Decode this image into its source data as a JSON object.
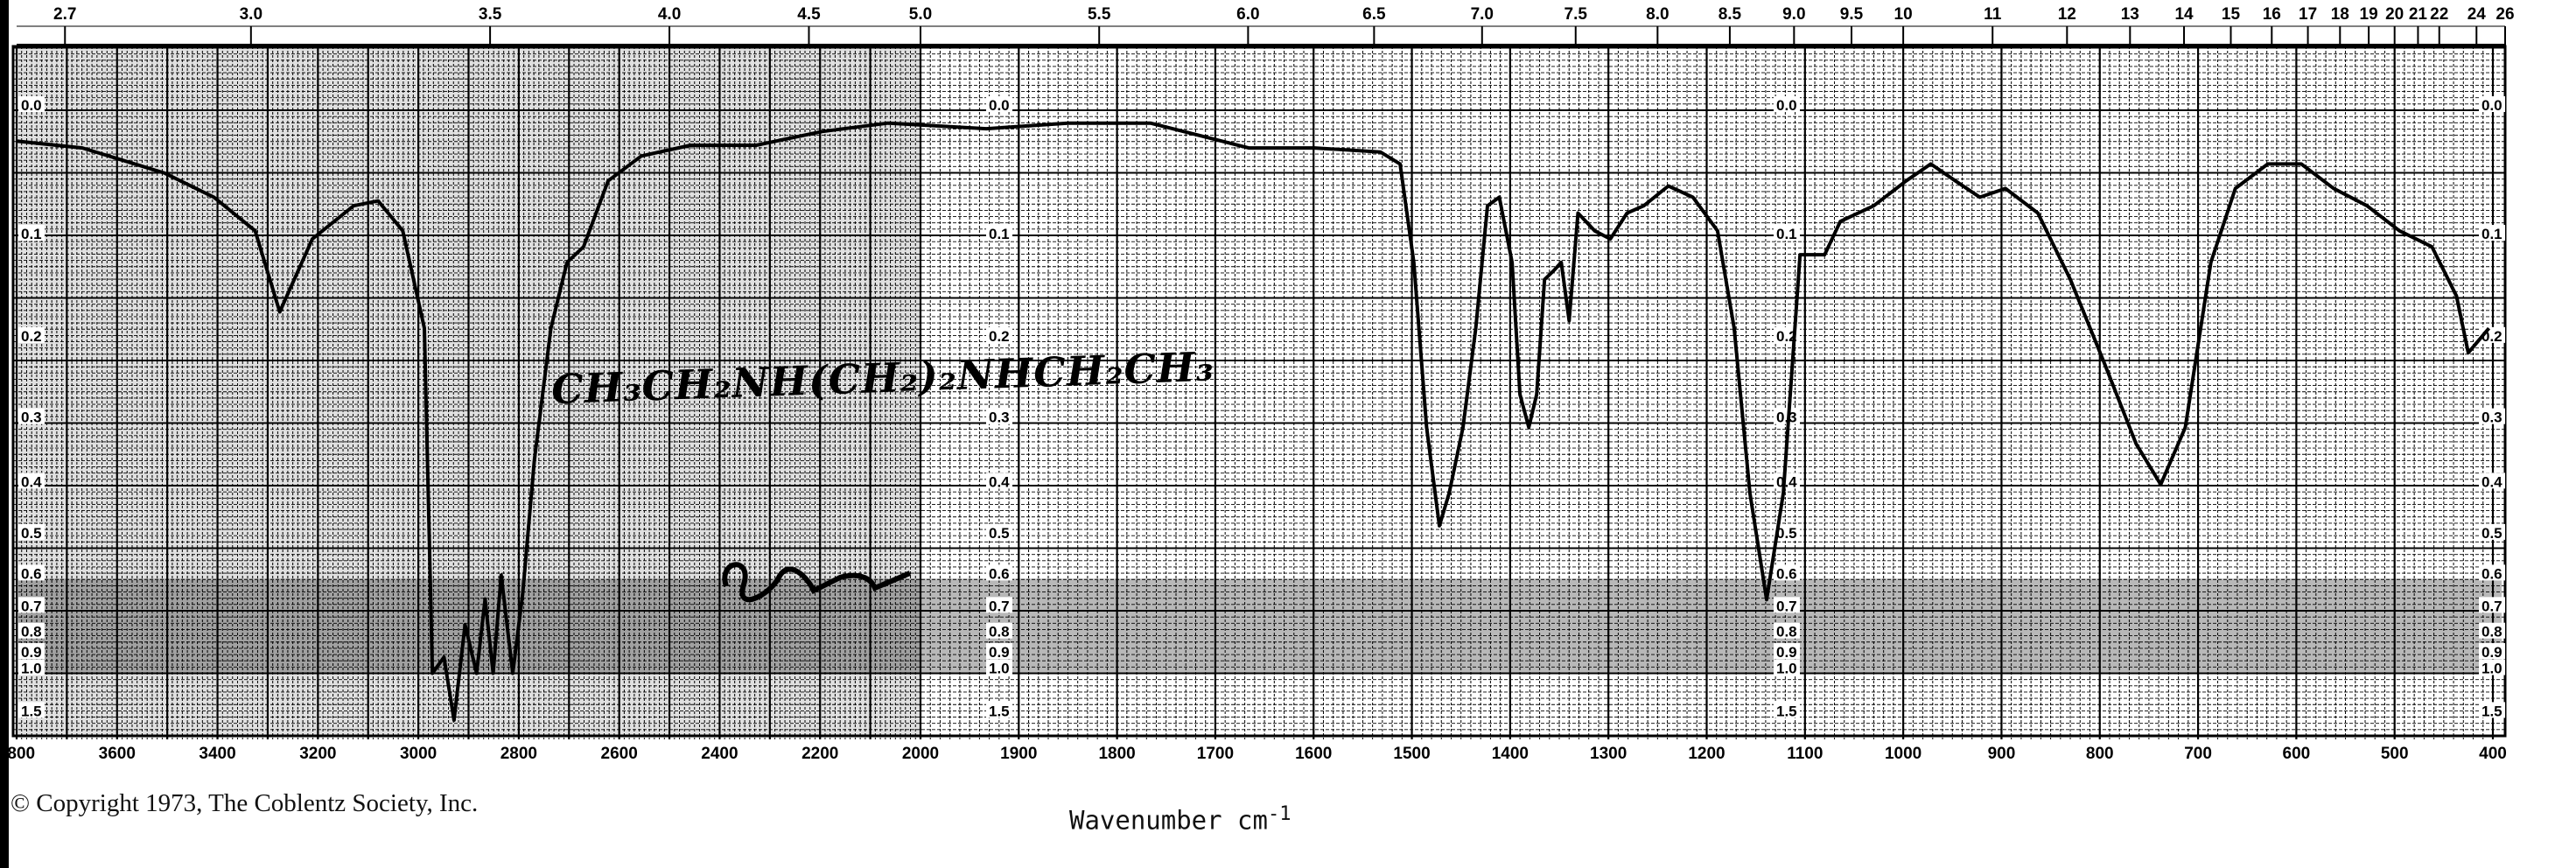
{
  "chart_data": {
    "type": "line",
    "title": "",
    "xlabel": "Wavenumber cm",
    "xlabel_superscript": "-1",
    "ylabel": "",
    "x_axis": {
      "quantity": "wavenumber",
      "unit": "cm-1",
      "range": [
        3800,
        400
      ],
      "scale_change_at": 2000,
      "tick_labels": [
        "3800",
        "3600",
        "3400",
        "3200",
        "3000",
        "2800",
        "2600",
        "2400",
        "2200",
        "2000",
        "1900",
        "1800",
        "1700",
        "1600",
        "1500",
        "1400",
        "1300",
        "1200",
        "1100",
        "1000",
        "900",
        "800",
        "700",
        "600",
        "500",
        "400"
      ]
    },
    "top_axis": {
      "quantity": "wavelength",
      "unit": "micrometers",
      "tick_labels": [
        "2.7",
        "3.0",
        "3.5",
        "4.0",
        "4.5",
        "5.0",
        "5.5",
        "6.0",
        "6.5",
        "7.0",
        "7.5",
        "8.0",
        "8.5",
        "9.0",
        "9.5",
        "10",
        "11",
        "12",
        "13",
        "14",
        "15",
        "16",
        "17",
        "18",
        "19",
        "20",
        "21",
        "22",
        "24",
        "26"
      ]
    },
    "y_axis": {
      "quantity": "absorbance",
      "scale": "linear in transmittance",
      "range": [
        0.0,
        1.5
      ],
      "tick_labels": [
        "0.0",
        "0.1",
        "0.2",
        "0.3",
        "0.4",
        "0.5",
        "0.6",
        "0.7",
        "0.8",
        "0.9",
        "1.0",
        "1.5"
      ]
    },
    "grid": true,
    "series": [
      {
        "x": [
          3800,
          3669,
          3505,
          3407,
          3325,
          3276,
          3211,
          3129,
          3080,
          3031,
          2988,
          2972,
          2949,
          2929,
          2907,
          2884,
          2867,
          2851,
          2835,
          2812,
          2792,
          2769,
          2736,
          2704,
          2671,
          2622,
          2556,
          2458,
          2327,
          2196,
          2065,
          1933,
          1850,
          1766,
          1666,
          1599,
          1532,
          1512,
          1498,
          1485,
          1472,
          1462,
          1448,
          1435,
          1423,
          1411,
          1398,
          1390,
          1381,
          1373,
          1365,
          1356,
          1348,
          1340,
          1331,
          1314,
          1298,
          1281,
          1264,
          1239,
          1214,
          1189,
          1172,
          1156,
          1139,
          1122,
          1105,
          1080,
          1064,
          1030,
          997,
          972,
          947,
          922,
          896,
          863,
          830,
          796,
          763,
          738,
          713,
          687,
          662,
          629,
          595,
          562,
          528,
          495,
          462,
          437,
          425,
          404
        ],
        "y": [
          0.022,
          0.027,
          0.046,
          0.065,
          0.093,
          0.169,
          0.1,
          0.072,
          0.068,
          0.093,
          0.186,
          1.0,
          0.9,
          1.6,
          0.75,
          1.0,
          0.66,
          1.0,
          0.59,
          1.0,
          0.64,
          0.356,
          0.186,
          0.121,
          0.107,
          0.052,
          0.033,
          0.025,
          0.025,
          0.015,
          0.009,
          0.013,
          0.009,
          0.009,
          0.027,
          0.027,
          0.03,
          0.039,
          0.121,
          0.307,
          0.474,
          0.411,
          0.307,
          0.186,
          0.072,
          0.065,
          0.121,
          0.263,
          0.307,
          0.263,
          0.137,
          0.129,
          0.121,
          0.178,
          0.078,
          0.093,
          0.1,
          0.078,
          0.072,
          0.056,
          0.065,
          0.093,
          0.186,
          0.411,
          0.662,
          0.411,
          0.114,
          0.114,
          0.085,
          0.072,
          0.052,
          0.039,
          0.052,
          0.065,
          0.058,
          0.078,
          0.137,
          0.223,
          0.331,
          0.396,
          0.307,
          0.121,
          0.058,
          0.039,
          0.039,
          0.058,
          0.072,
          0.093,
          0.107,
          0.153,
          0.213,
          0.186
        ]
      }
    ],
    "annotations": {
      "formula": "CH₃CH₂NH(CH₂)₂NHCH₂CH₃",
      "signature": "illegible handwritten initials"
    }
  },
  "footer": {
    "copyright": "© Copyright 1973, The Coblentz Society, Inc."
  }
}
